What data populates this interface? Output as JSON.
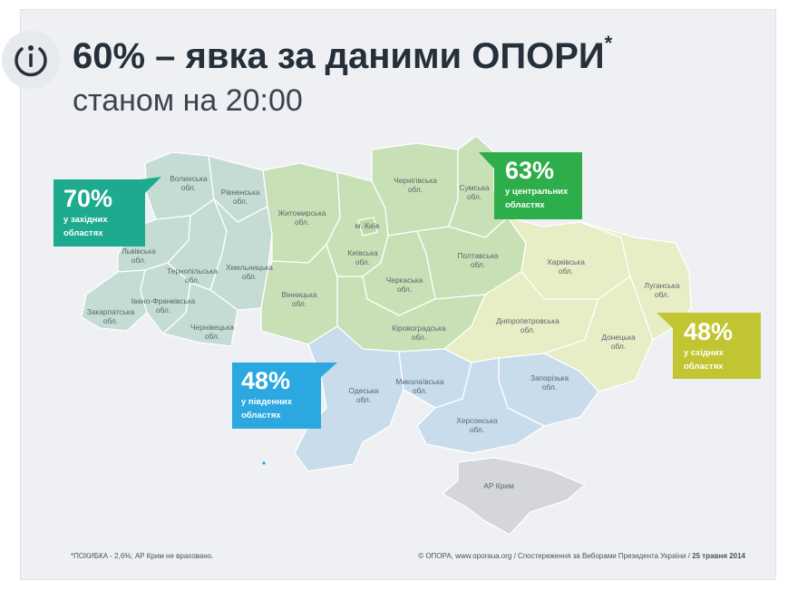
{
  "header": {
    "title": "60% – явка за даними ОПОРИ",
    "title_mark": "*",
    "subtitle": "станом на 20:00"
  },
  "colors": {
    "west": "#c4dcd3",
    "center": "#c8e0b6",
    "east": "#e7edc4",
    "south": "#c9dcec",
    "crimea": "#d4d6d9",
    "west_callout": "#1eaa8e",
    "center_callout": "#2eae4a",
    "east_callout": "#c0c531",
    "south_callout": "#2aa8df"
  },
  "callouts": {
    "west": {
      "pct": "70%",
      "desc1": "у західних",
      "desc2": "областях"
    },
    "center": {
      "pct": "63%",
      "desc1": "у центральних",
      "desc2": "областях"
    },
    "east": {
      "pct": "48%",
      "desc1": "у східних",
      "desc2": "областях"
    },
    "south": {
      "pct": "48%",
      "desc1": "у південних",
      "desc2": "областях"
    }
  },
  "regions": {
    "volyn": "Волинська",
    "rivne": "Рівненська",
    "lviv": "Львівська",
    "ternopil": "Тернопільська",
    "khmelnytskyi": "Хмельницька",
    "zakarpattia": "Закарпатська",
    "ivano_frankivsk": "Івано-Франківська",
    "chernivtsi": "Чернівецька",
    "zhytomyr": "Житомирська",
    "vinnytsia": "Вінницька",
    "kyiv_city": "м. Київ",
    "kyiv": "Київська",
    "chernihiv": "Чернігівська",
    "sumy": "Сумська",
    "poltava": "Полтавська",
    "cherkasy": "Черкаська",
    "kirovohrad": "Кіровоградська",
    "kharkiv": "Харківська",
    "luhansk": "Луганська",
    "dnipropetrovsk": "Дніпропетровська",
    "donetsk": "Донецька",
    "odesa": "Одеська",
    "mykolaiv": "Миколаївська",
    "zaporizhzhia": "Запорізька",
    "kherson": "Херсонська",
    "crimea": "АР Крим",
    "obl": "обл."
  },
  "footer": {
    "note": "*ПОХИБКА - 2,6%; АР Крим не враховано.",
    "credit": "© ОПОРА, www.oporaua.org / Спостереження за Виборами Президента України / ",
    "date": "25 травня 2014"
  }
}
